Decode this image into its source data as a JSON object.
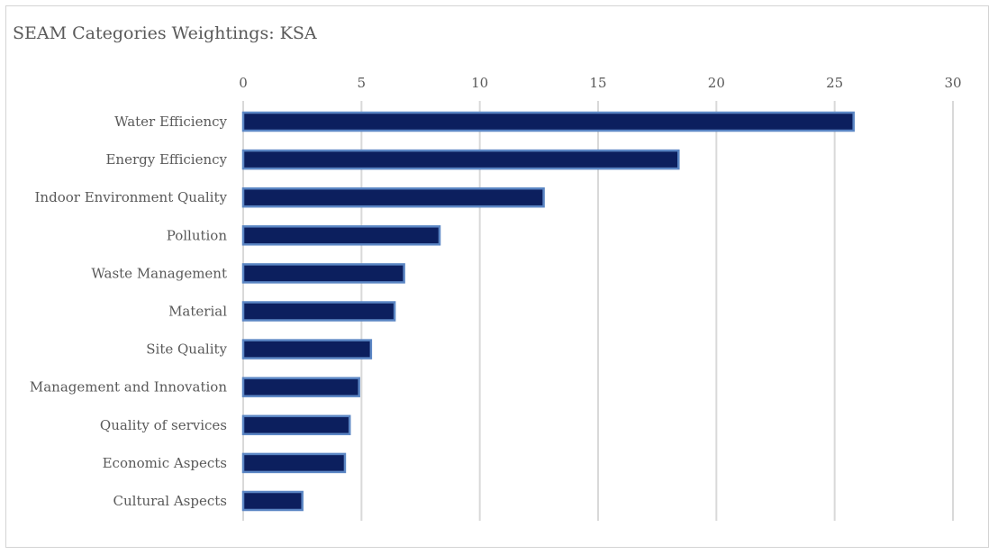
{
  "chart_data": {
    "type": "bar",
    "orientation": "horizontal",
    "title": "SEAM Categories Weightings: KSA",
    "xlabel": "",
    "ylabel": "",
    "xlim": [
      0,
      30
    ],
    "x_ticks": [
      "0",
      "5",
      "10",
      "15",
      "20",
      "25",
      "30"
    ],
    "grid": "vertical",
    "legend": "none",
    "categories": [
      "Water Efficiency",
      "Energy Efficiency",
      "Indoor Environment Quality",
      "Pollution",
      "Waste Management",
      "Material",
      "Site Quality",
      "Management and Innovation",
      "Quality of services",
      "Economic Aspects",
      "Cultural Aspects"
    ],
    "values": [
      25.8,
      18.4,
      12.7,
      8.3,
      6.8,
      6.4,
      5.4,
      4.9,
      4.5,
      4.3,
      2.5
    ],
    "colors": {
      "bar_fill": "#0c1f5e",
      "bar_stroke": "#5b86c4",
      "grid": "#d9d9d9",
      "text": "#595959"
    }
  }
}
